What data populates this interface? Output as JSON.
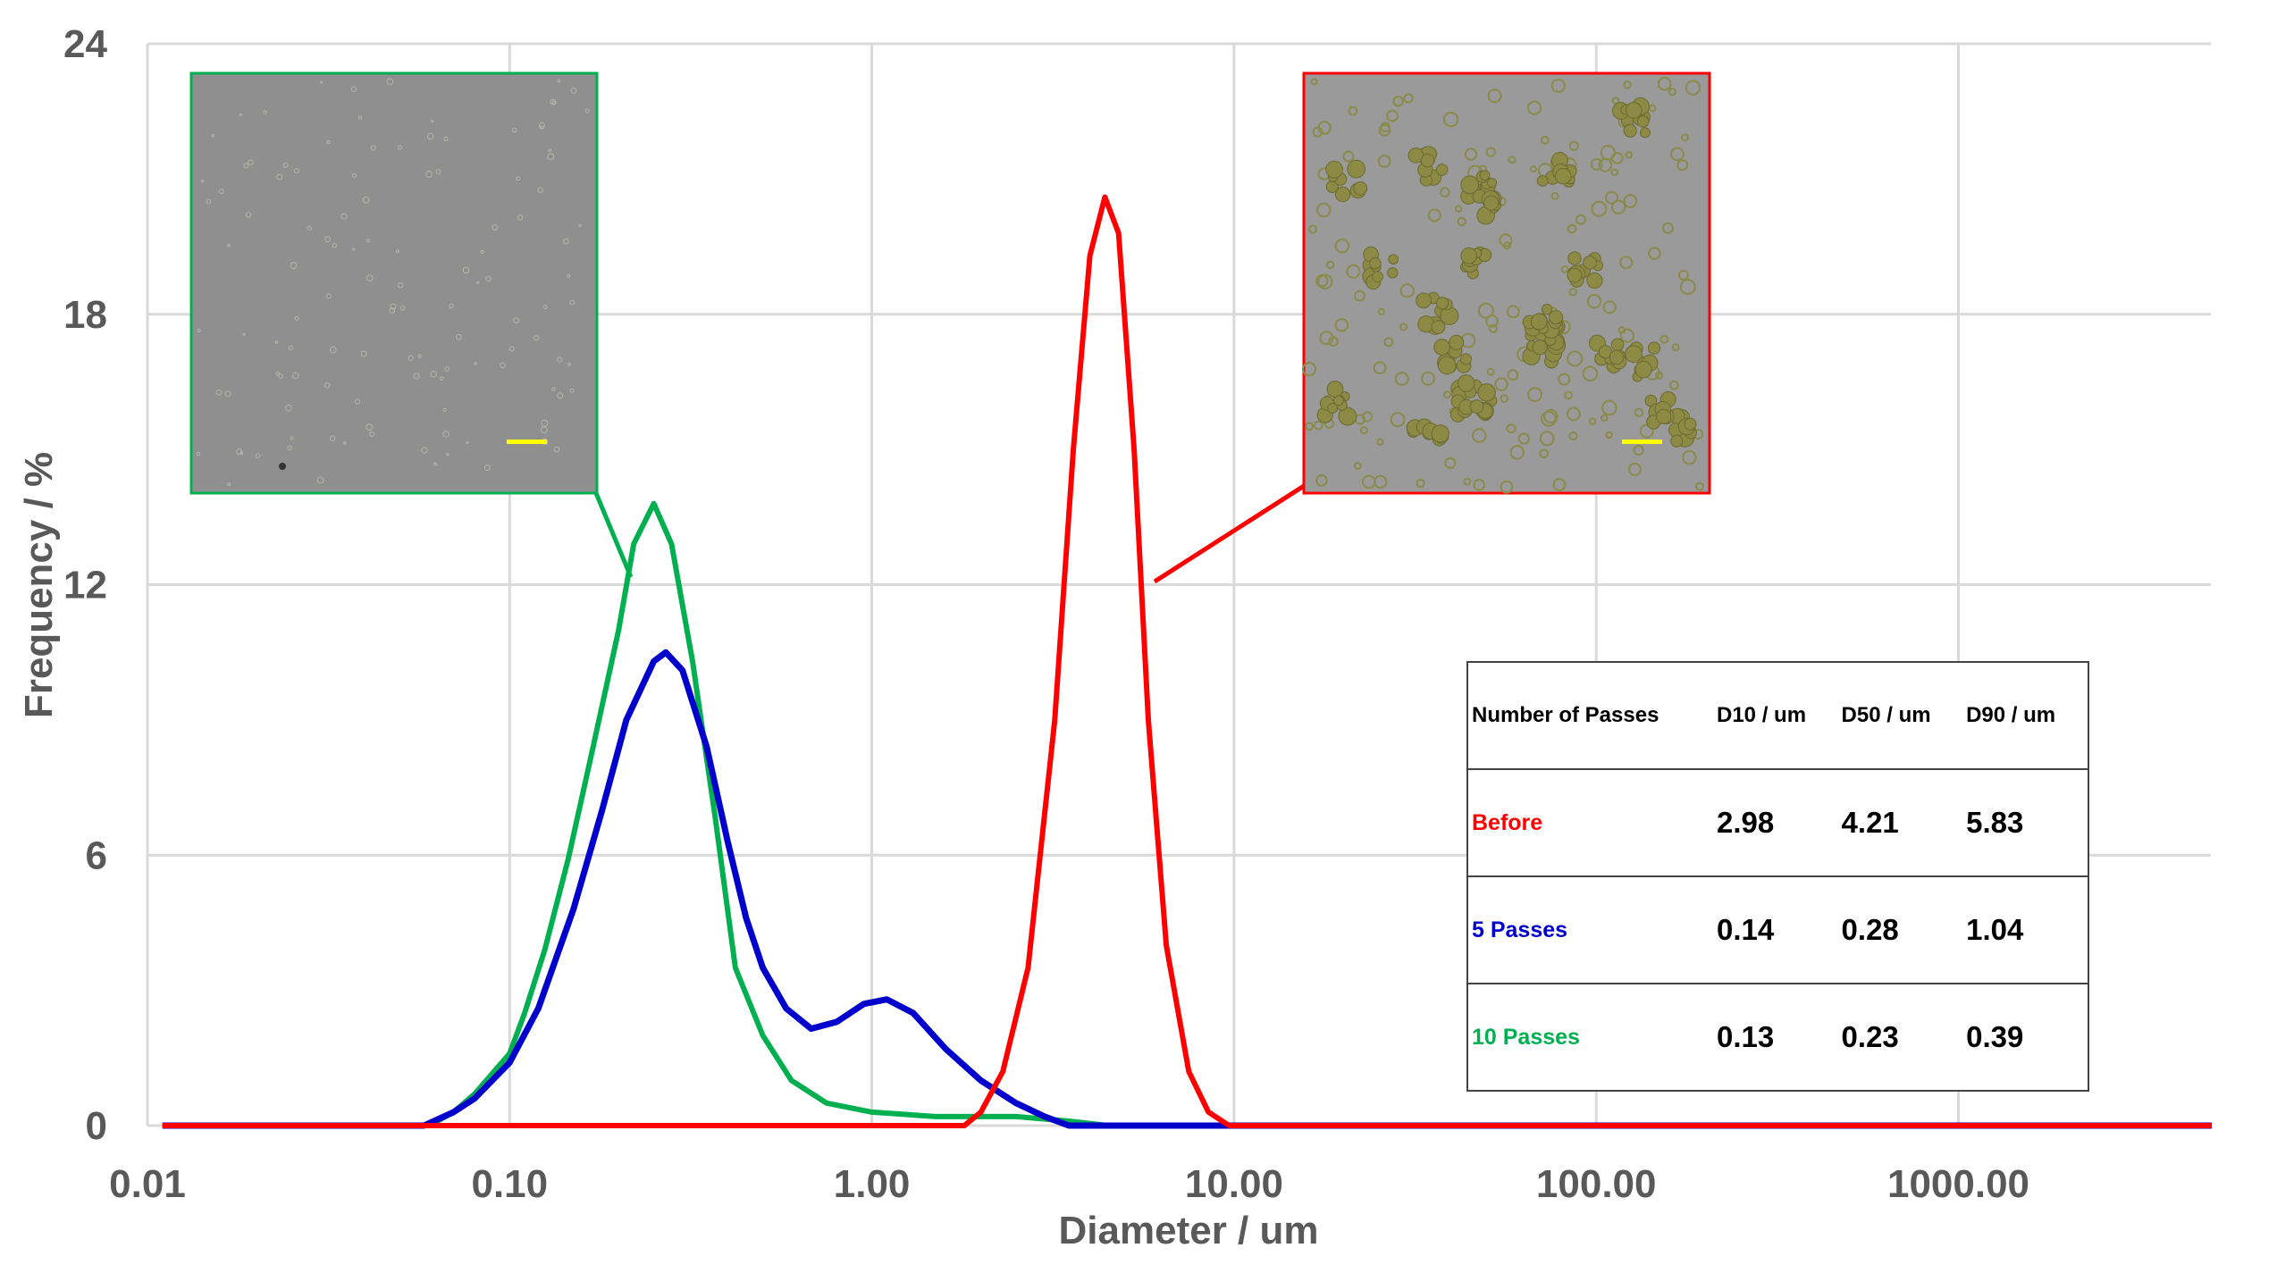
{
  "chart_data": {
    "type": "line",
    "title": "",
    "xlabel": "Diameter / um",
    "ylabel": "Frequency / %",
    "xscale": "log",
    "xlim": [
      0.01,
      5000
    ],
    "ylim": [
      0,
      24
    ],
    "xticks": [
      "0.01",
      "0.10",
      "1.00",
      "10.00",
      "100.00",
      "1000.00"
    ],
    "xtick_values": [
      0.01,
      0.1,
      1,
      10,
      100,
      1000
    ],
    "yticks": [
      "0",
      "6",
      "12",
      "18",
      "24"
    ],
    "ytick_values": [
      0,
      6,
      12,
      18,
      24
    ],
    "grid": true,
    "series": [
      {
        "name": "Before",
        "color": "#ff0000",
        "x": [
          0.011,
          1.8,
          2.0,
          2.3,
          2.7,
          3.2,
          3.6,
          4.0,
          4.4,
          4.8,
          5.3,
          5.8,
          6.5,
          7.5,
          8.5,
          9.7,
          5000
        ],
        "y": [
          0,
          0,
          0.3,
          1.2,
          3.5,
          9,
          15,
          19.3,
          20.6,
          19.8,
          15,
          9,
          4,
          1.2,
          0.3,
          0,
          0
        ]
      },
      {
        "name": "5 Passes",
        "color": "#0000cc",
        "x": [
          0.011,
          0.058,
          0.07,
          0.08,
          0.1,
          0.12,
          0.15,
          0.18,
          0.21,
          0.25,
          0.27,
          0.3,
          0.35,
          0.4,
          0.45,
          0.5,
          0.58,
          0.68,
          0.8,
          0.95,
          1.1,
          1.3,
          1.6,
          2.0,
          2.5,
          3.0,
          3.5,
          5000
        ],
        "y": [
          0,
          0,
          0.3,
          0.6,
          1.4,
          2.6,
          4.8,
          7,
          9,
          10.3,
          10.5,
          10.1,
          8.4,
          6.3,
          4.6,
          3.5,
          2.6,
          2.15,
          2.3,
          2.7,
          2.8,
          2.5,
          1.7,
          1.0,
          0.5,
          0.2,
          0,
          0
        ]
      },
      {
        "name": "10 Passes",
        "color": "#00b050",
        "x": [
          0.011,
          0.06,
          0.07,
          0.08,
          0.1,
          0.11,
          0.125,
          0.145,
          0.17,
          0.2,
          0.22,
          0.25,
          0.28,
          0.32,
          0.37,
          0.42,
          0.5,
          0.6,
          0.75,
          1.0,
          1.5,
          2.5,
          3.5,
          4.5,
          5000
        ],
        "y": [
          0,
          0,
          0.3,
          0.7,
          1.6,
          2.5,
          3.9,
          5.9,
          8.4,
          11,
          12.9,
          13.8,
          12.9,
          10.3,
          6.8,
          3.5,
          2,
          1,
          0.5,
          0.3,
          0.2,
          0.2,
          0.1,
          0,
          0
        ]
      }
    ],
    "table": {
      "headers": [
        "Number of Passes",
        "D10 / um",
        "D50 / um",
        "D90 / um"
      ],
      "rows": [
        {
          "label": "Before",
          "color": "#ff0000",
          "values": [
            "2.98",
            "4.21",
            "5.83"
          ]
        },
        {
          "label": "5 Passes",
          "color": "#0000cc",
          "values": [
            "0.14",
            "0.28",
            "1.04"
          ]
        },
        {
          "label": "10 Passes",
          "color": "#00b050",
          "values": [
            "0.13",
            "0.23",
            "0.39"
          ]
        }
      ]
    },
    "insets": [
      {
        "series": "10 Passes",
        "border_color": "#00b050",
        "content": "micrograph-fine-particles"
      },
      {
        "series": "Before",
        "border_color": "#ff0000",
        "content": "micrograph-aggregates"
      }
    ]
  }
}
